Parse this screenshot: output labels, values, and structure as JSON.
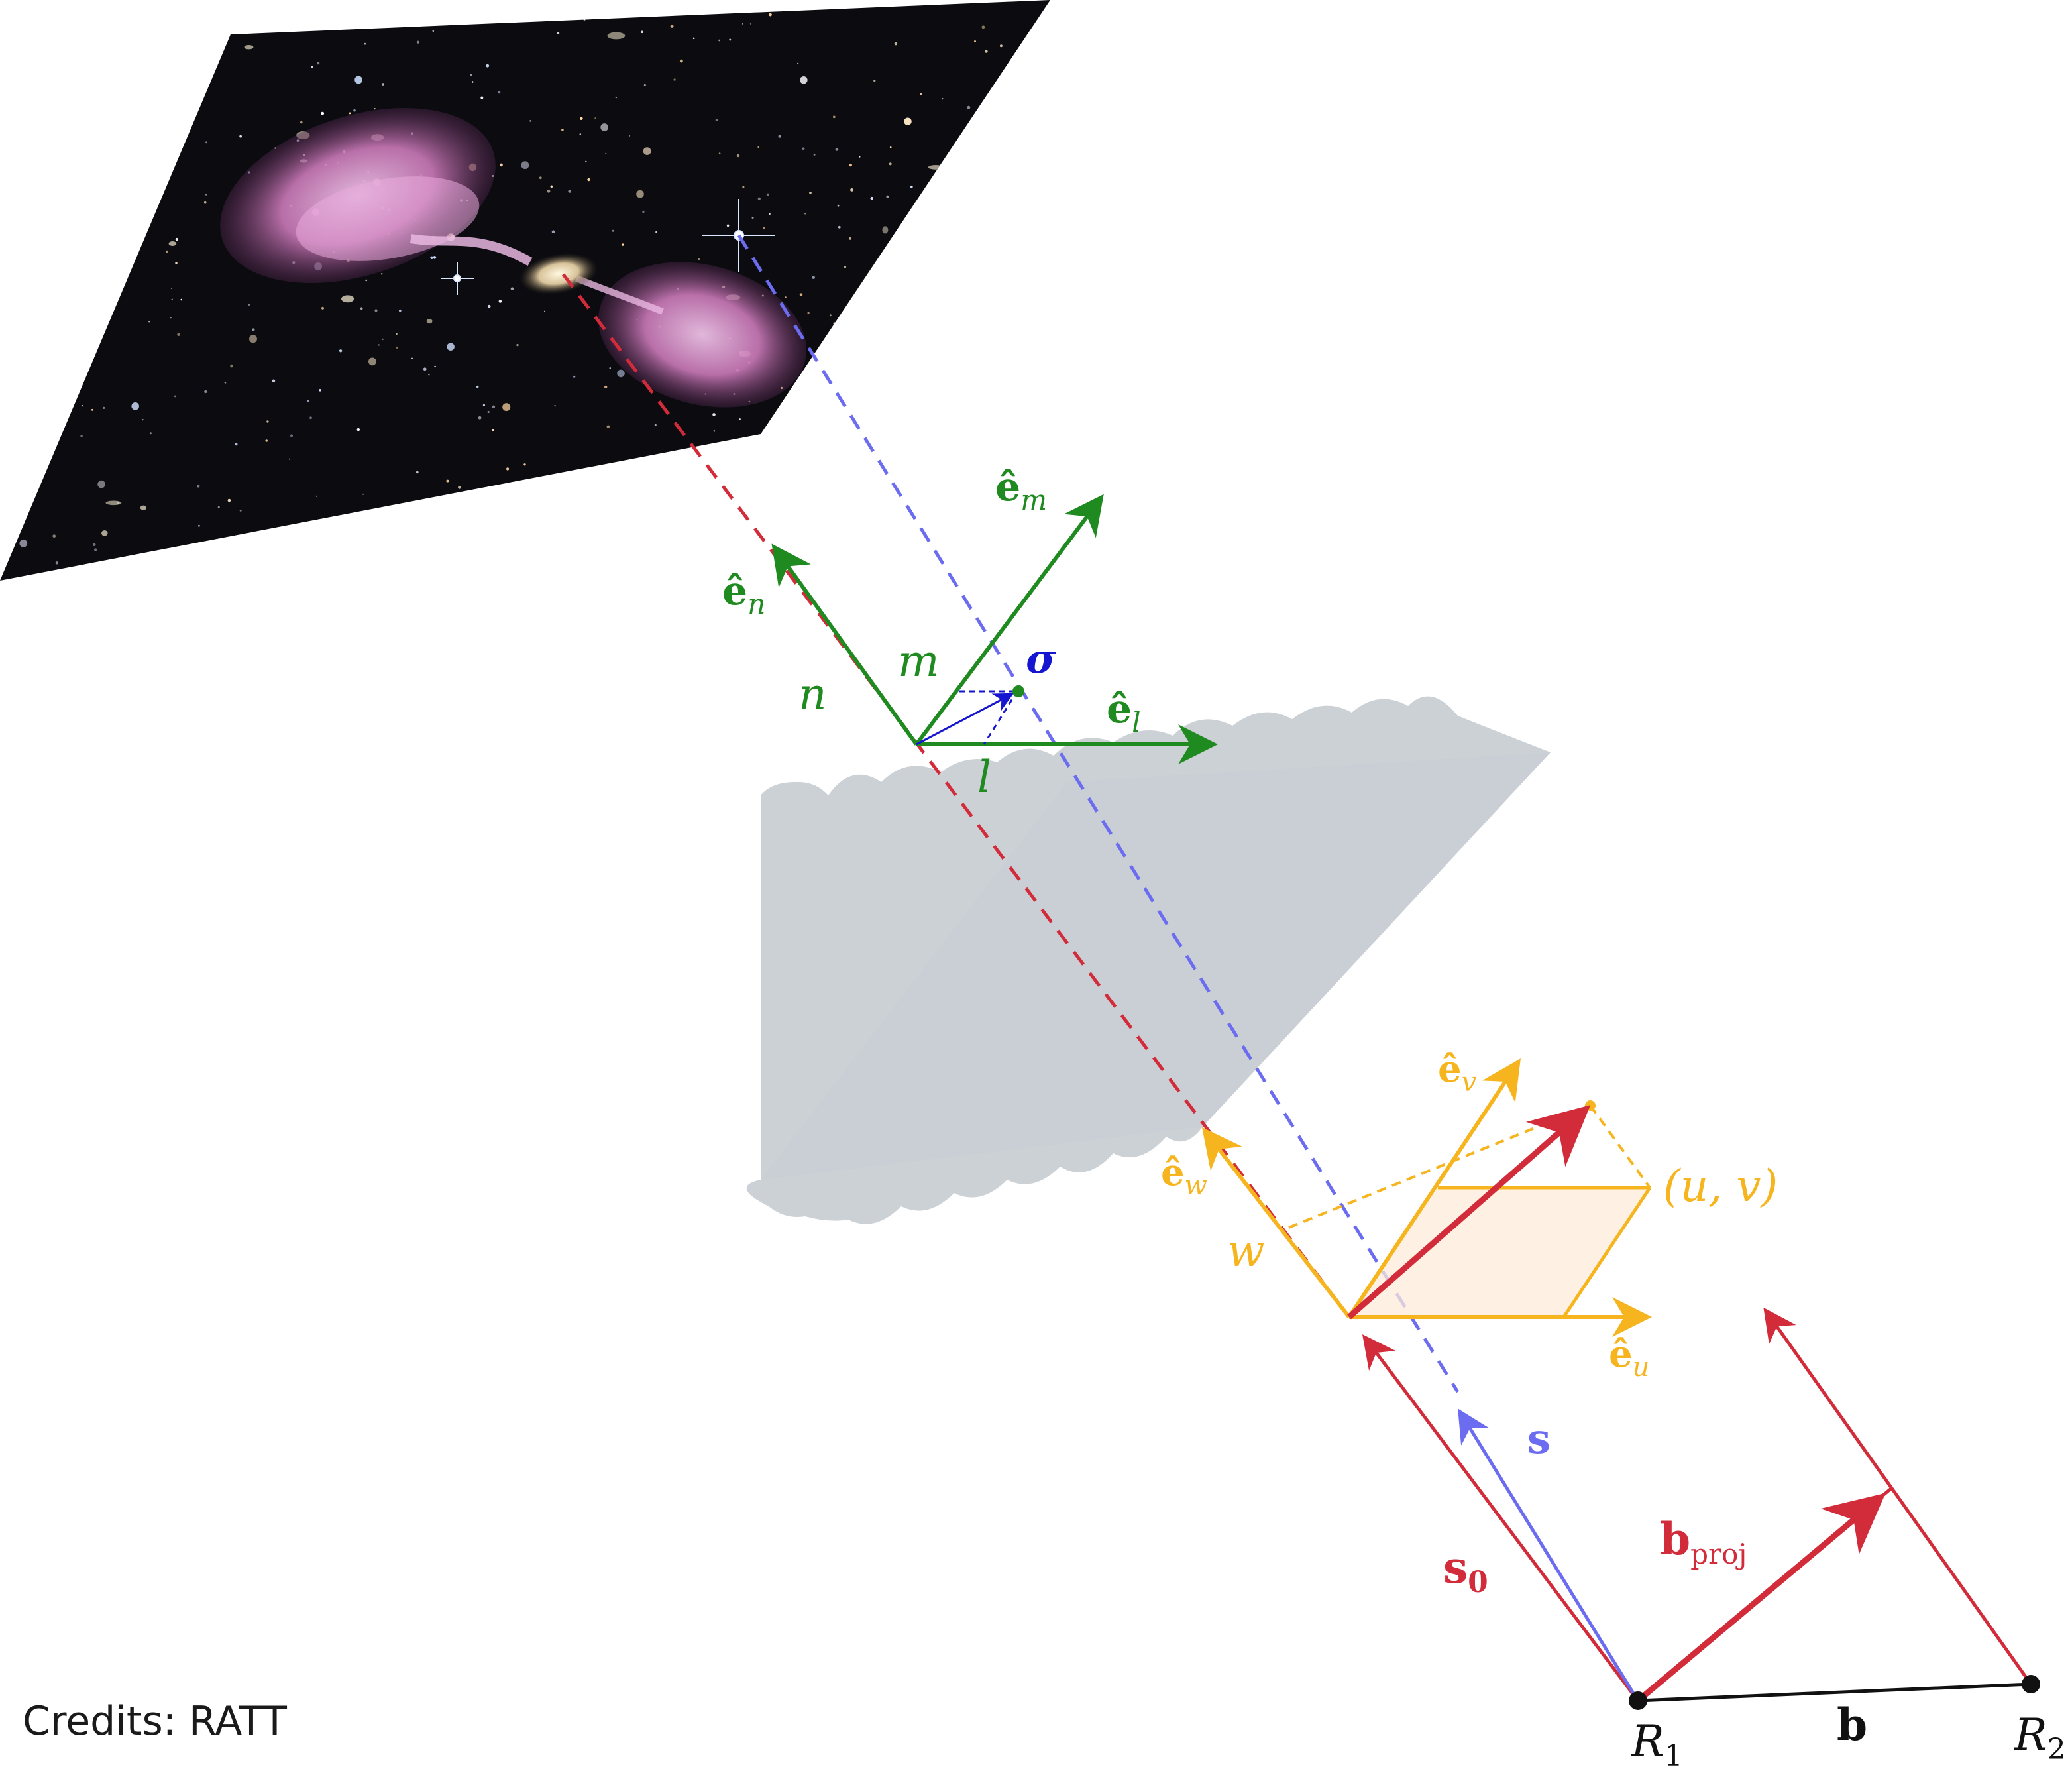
{
  "colors": {
    "red": "#d22b3a",
    "blue": "#6b6cf0",
    "green": "#1f8a1f",
    "orange": "#f6b51e",
    "wave": "#c9cfd4",
    "sky": "#0b0b10",
    "lobe": "#d98ac8",
    "black": "#111111"
  },
  "labels": {
    "e_m_base": "ê",
    "e_m_sub": "m",
    "e_n_base": "ê",
    "e_n_sub": "n",
    "e_l_base": "ê",
    "e_l_sub": "l",
    "n": "n",
    "m": "m",
    "l": "l",
    "sigma": "σ",
    "e_v_base": "ê",
    "e_v_sub": "v",
    "e_w_base": "ê",
    "e_w_sub": "w",
    "e_u_base": "ê",
    "e_u_sub": "u",
    "w": "w",
    "uv": "(u, v)",
    "s": "s",
    "s0_base": "s",
    "s0_sub": "0",
    "bproj_base": "b",
    "bproj_sub": "proj",
    "b": "b",
    "R1_base": "R",
    "R1_sub": "1",
    "R2_base": "R",
    "R2_sub": "2"
  },
  "credits": "Credits: RATT"
}
